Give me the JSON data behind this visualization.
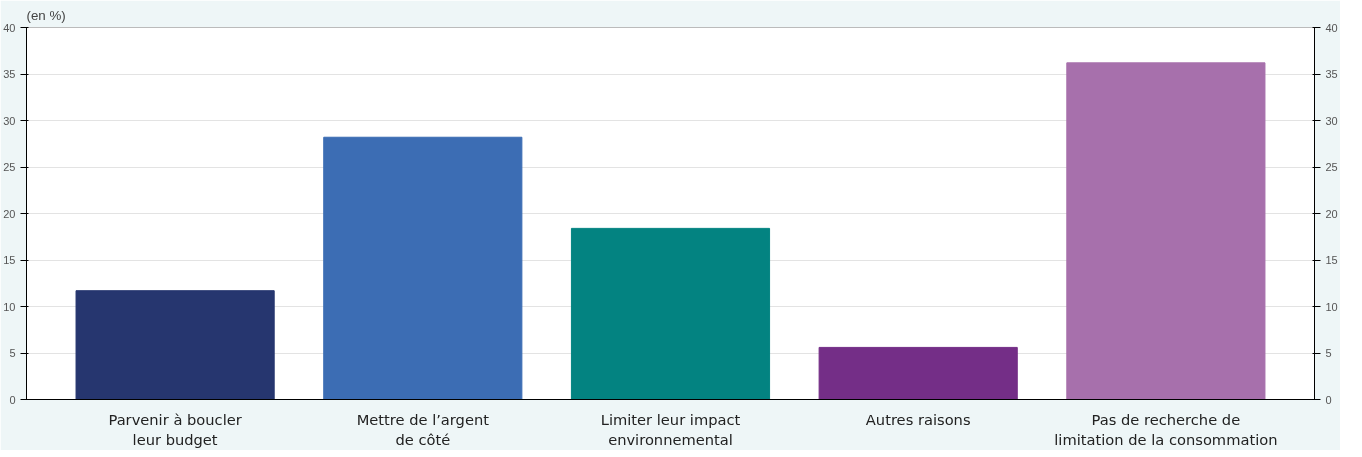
{
  "chart_data": {
    "type": "bar",
    "ylabel": "(en %)",
    "categories": [
      "Parvenir à boucler\nleur budget",
      "Mettre de l’argent\nde côté",
      "Limiter leur impact\nenvironnemental",
      "Autres raisons",
      "Pas de recherche de\nlimitation de la consommation"
    ],
    "values": [
      11.7,
      28.2,
      18.4,
      5.6,
      36.2
    ],
    "colors": [
      "#26366f",
      "#3c6db4",
      "#038381",
      "#742e87",
      "#a770ac"
    ],
    "ylim": [
      0,
      40
    ],
    "yticks": [
      0,
      5,
      10,
      15,
      20,
      25,
      30,
      35,
      40
    ],
    "y2lim": [
      0,
      40
    ],
    "y2ticks": [
      0,
      5,
      10,
      15,
      20,
      25,
      30,
      35,
      40
    ],
    "grid": "y"
  }
}
